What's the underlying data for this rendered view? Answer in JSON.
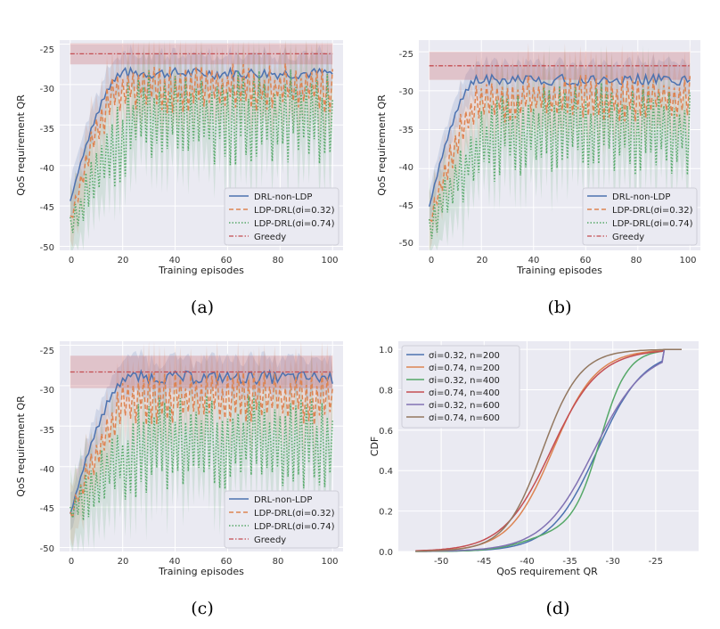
{
  "colors": {
    "bg": "#eaeaf2",
    "grid": "#ffffff",
    "blue": "#4c72b0",
    "orange": "#dd8452",
    "green": "#55a868",
    "red": "#c44e52",
    "purple": "#8172b3",
    "brown": "#937860"
  },
  "chart_data": [
    {
      "id": "a",
      "type": "line",
      "caption": "(a)",
      "xlabel": "Training episodes",
      "ylabel": "QoS requirement QR",
      "xlim": [
        -4,
        104
      ],
      "ylim": [
        -50.5,
        -24.5
      ],
      "xticks": [
        "0",
        "20",
        "40",
        "60",
        "80",
        "100"
      ],
      "yticks": [
        "-25",
        "-30",
        "-35",
        "-40",
        "-45",
        "-50"
      ],
      "legend": [
        "DRL-non-LDP",
        "LDP-DRL(σi=0.32)",
        "LDP-DRL(σi=0.74)",
        "Greedy"
      ],
      "legend_position": "lower-right",
      "series": [
        {
          "name": "DRL-non-LDP",
          "start": -44.5,
          "rise_end": 20,
          "plateau": -28.6,
          "amp": 0.7,
          "band": 3.0
        },
        {
          "name": "LDP-DRL(σi=0.32)",
          "start": -47,
          "rise_end": 20,
          "plateau": -30.5,
          "amp": 2.6,
          "band": 4.5
        },
        {
          "name": "LDP-DRL(σi=0.74)",
          "start": -48,
          "rise_end": 30,
          "plateau": -34,
          "amp": 5.0,
          "band": 6.0
        },
        {
          "name": "Greedy",
          "start": -26.2,
          "plateau": -26.2,
          "amp": 0,
          "band": 1.3
        }
      ]
    },
    {
      "id": "b",
      "type": "line",
      "caption": "(b)",
      "xlabel": "Training episodes",
      "ylabel": "QoS requirement QR",
      "xlim": [
        -4,
        104
      ],
      "ylim": [
        -50.5,
        -23.5
      ],
      "xticks": [
        "0",
        "20",
        "40",
        "60",
        "80",
        "100"
      ],
      "yticks": [
        "-25",
        "-30",
        "-35",
        "-40",
        "-45",
        "-50"
      ],
      "legend": [
        "DRL-non-LDP",
        "LDP-DRL(σi=0.32)",
        "LDP-DRL(σi=0.74)",
        "Greedy"
      ],
      "legend_position": "lower-right",
      "series": [
        {
          "name": "DRL-non-LDP",
          "start": -45,
          "rise_end": 18,
          "plateau": -28.6,
          "amp": 0.7,
          "band": 2.8
        },
        {
          "name": "LDP-DRL(σi=0.32)",
          "start": -47,
          "rise_end": 22,
          "plateau": -31,
          "amp": 2.6,
          "band": 4.5
        },
        {
          "name": "LDP-DRL(σi=0.74)",
          "start": -48,
          "rise_end": 30,
          "plateau": -35,
          "amp": 5.0,
          "band": 6.0
        },
        {
          "name": "Greedy",
          "start": -26.8,
          "plateau": -26.8,
          "amp": 0,
          "band": 1.8
        }
      ]
    },
    {
      "id": "c",
      "type": "line",
      "caption": "(c)",
      "xlabel": "Training episodes",
      "ylabel": "QoS requirement QR",
      "xlim": [
        -4,
        104
      ],
      "ylim": [
        -50.5,
        -24.5
      ],
      "xticks": [
        "0",
        "20",
        "40",
        "60",
        "80",
        "100"
      ],
      "yticks": [
        "-25",
        "-30",
        "-35",
        "-40",
        "-45",
        "-50"
      ],
      "legend": [
        "DRL-non-LDP",
        "LDP-DRL(σi=0.32)",
        "LDP-DRL(σi=0.74)",
        "Greedy"
      ],
      "legend_position": "lower-right",
      "series": [
        {
          "name": "DRL-non-LDP",
          "start": -46,
          "rise_end": 22,
          "plateau": -29,
          "amp": 0.8,
          "band": 2.8
        },
        {
          "name": "LDP-DRL(σi=0.32)",
          "start": -46.5,
          "rise_end": 26,
          "plateau": -31.5,
          "amp": 2.8,
          "band": 4.5
        },
        {
          "name": "LDP-DRL(σi=0.74)",
          "start": -46,
          "rise_end": 34,
          "plateau": -37,
          "amp": 5.0,
          "band": 6.0
        },
        {
          "name": "Greedy",
          "start": -28.3,
          "plateau": -28.3,
          "amp": 0,
          "band": 2.0
        }
      ]
    },
    {
      "id": "d",
      "type": "line",
      "caption": "(d)",
      "xlabel": "QoS requirement QR",
      "ylabel": "CDF",
      "xlim": [
        -55,
        -20
      ],
      "ylim": [
        0,
        1.04
      ],
      "xticks": [
        "-50",
        "-45",
        "-40",
        "-35",
        "-30",
        "-25"
      ],
      "xtick_values": [
        -50,
        -45,
        -40,
        -35,
        -30,
        -25
      ],
      "yticks": [
        "0.0",
        "0.2",
        "0.4",
        "0.6",
        "0.8",
        "1.0"
      ],
      "ytick_values": [
        0,
        0.2,
        0.4,
        0.6,
        0.8,
        1.0
      ],
      "legend": [
        "σi=0.32, n=200",
        "σi=0.74, n=200",
        "σi=0.32, n=400",
        "σi=0.74, n=400",
        "σi=0.32, n=600",
        "σi=0.74, n=600"
      ],
      "legend_position": "top-left",
      "series": [
        {
          "name": "σi=0.32, n=200",
          "median": -31.8,
          "spread": 3.2
        },
        {
          "name": "σi=0.74, n=200",
          "median": -37.0,
          "spread": 3.0
        },
        {
          "name": "σi=0.32, n=400",
          "median": -31.5,
          "spread": 1.6,
          "tail": 0.1
        },
        {
          "name": "σi=0.74, n=400",
          "median": -37.2,
          "spread": 3.3
        },
        {
          "name": "σi=0.32, n=600",
          "median": -32.2,
          "spread": 3.5
        },
        {
          "name": "σi=0.74, n=600",
          "median": -38.2,
          "spread": 2.6
        }
      ]
    }
  ]
}
